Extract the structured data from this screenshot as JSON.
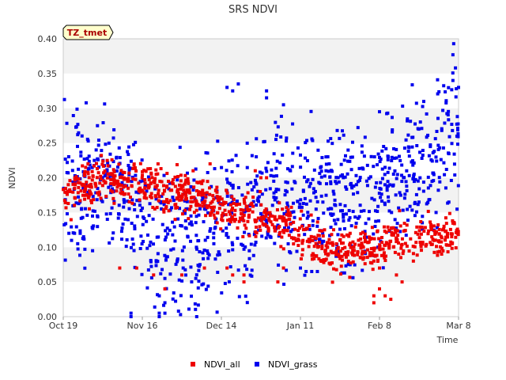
{
  "chart_data": {
    "type": "scatter",
    "title": "SRS NDVI",
    "xlabel": "Time",
    "ylabel": "NDVI",
    "tag": "TZ_tmet",
    "ylim": [
      0.0,
      0.4
    ],
    "yticks": [
      "0.00",
      "0.05",
      "0.10",
      "0.15",
      "0.20",
      "0.25",
      "0.30",
      "0.35",
      "0.40"
    ],
    "xlim": [
      0,
      140
    ],
    "xticks": [
      {
        "day": 0,
        "label": "Oct 19"
      },
      {
        "day": 28,
        "label": "Nov 16"
      },
      {
        "day": 56,
        "label": "Dec 14"
      },
      {
        "day": 84,
        "label": "Jan 11"
      },
      {
        "day": 112,
        "label": "Feb 8"
      },
      {
        "day": 140,
        "label": "Mar 8"
      }
    ],
    "grid": "horizontal bands",
    "legend_position": "bottom-center",
    "series": [
      {
        "name": "NDVI_all",
        "color": "#ee0000",
        "anchors": [
          [
            0,
            0.175
          ],
          [
            8,
            0.19
          ],
          [
            14,
            0.2
          ],
          [
            20,
            0.19
          ],
          [
            28,
            0.195
          ],
          [
            32,
            0.19
          ],
          [
            36,
            0.18
          ],
          [
            44,
            0.175
          ],
          [
            52,
            0.165
          ],
          [
            60,
            0.155
          ],
          [
            64,
            0.15
          ],
          [
            68,
            0.145
          ],
          [
            72,
            0.14
          ],
          [
            80,
            0.13
          ],
          [
            84,
            0.12
          ],
          [
            88,
            0.11
          ],
          [
            92,
            0.095
          ],
          [
            96,
            0.09
          ],
          [
            100,
            0.095
          ],
          [
            104,
            0.1
          ],
          [
            108,
            0.1
          ],
          [
            112,
            0.1
          ],
          [
            116,
            0.11
          ],
          [
            120,
            0.11
          ],
          [
            124,
            0.115
          ],
          [
            128,
            0.115
          ],
          [
            132,
            0.11
          ],
          [
            136,
            0.115
          ],
          [
            140,
            0.125
          ]
        ],
        "spread": 0.015,
        "n": 900,
        "outliers": [
          [
            20,
            0.07
          ],
          [
            26,
            0.07
          ],
          [
            32,
            0.06
          ],
          [
            36,
            0.04
          ],
          [
            42,
            0.06
          ],
          [
            50,
            0.07
          ],
          [
            58,
            0.07
          ],
          [
            60,
            0.06
          ],
          [
            64,
            0.05
          ],
          [
            64,
            0.06
          ],
          [
            76,
            0.05
          ],
          [
            78,
            0.07
          ],
          [
            110,
            0.02
          ],
          [
            110,
            0.03
          ],
          [
            112,
            0.04
          ],
          [
            114,
            0.03
          ],
          [
            116,
            0.025
          ],
          [
            118,
            0.06
          ],
          [
            120,
            0.05
          ],
          [
            110,
            0.08
          ],
          [
            112,
            0.07
          ],
          [
            70,
            0.2
          ],
          [
            68,
            0.21
          ],
          [
            72,
            0.2
          ],
          [
            134,
            0.09
          ],
          [
            124,
            0.08
          ],
          [
            52,
            0.22
          ],
          [
            46,
            0.21
          ]
        ]
      },
      {
        "name": "NDVI_grass",
        "color": "#0000ee",
        "anchors": [
          [
            0,
            0.195
          ],
          [
            6,
            0.2
          ],
          [
            12,
            0.2
          ],
          [
            16,
            0.21
          ],
          [
            20,
            0.17
          ],
          [
            24,
            0.16
          ],
          [
            28,
            0.15
          ],
          [
            32,
            0.13
          ],
          [
            36,
            0.12
          ],
          [
            40,
            0.115
          ],
          [
            44,
            0.11
          ],
          [
            48,
            0.115
          ],
          [
            52,
            0.12
          ],
          [
            56,
            0.13
          ],
          [
            60,
            0.135
          ],
          [
            64,
            0.14
          ],
          [
            68,
            0.155
          ],
          [
            72,
            0.165
          ],
          [
            76,
            0.17
          ],
          [
            80,
            0.175
          ],
          [
            84,
            0.18
          ],
          [
            88,
            0.185
          ],
          [
            92,
            0.175
          ],
          [
            96,
            0.17
          ],
          [
            100,
            0.165
          ],
          [
            104,
            0.165
          ],
          [
            108,
            0.17
          ],
          [
            112,
            0.19
          ],
          [
            116,
            0.2
          ],
          [
            120,
            0.205
          ],
          [
            124,
            0.21
          ],
          [
            128,
            0.23
          ],
          [
            132,
            0.24
          ],
          [
            136,
            0.26
          ],
          [
            140,
            0.28
          ]
        ],
        "spread": 0.05,
        "n": 1050,
        "outliers": [
          [
            24,
            0.0
          ],
          [
            24,
            0.005
          ],
          [
            34,
            0.0
          ],
          [
            34,
            0.005
          ],
          [
            36,
            0.005
          ],
          [
            36,
            0.02
          ],
          [
            34,
            0.03
          ],
          [
            36,
            0.055
          ],
          [
            60,
            0.325
          ],
          [
            62,
            0.335
          ],
          [
            58,
            0.33
          ],
          [
            72,
            0.325
          ],
          [
            72,
            0.315
          ],
          [
            78,
            0.305
          ],
          [
            112,
            0.295
          ],
          [
            138,
            0.377
          ],
          [
            138,
            0.34
          ],
          [
            140,
            0.33
          ],
          [
            86,
            0.065
          ],
          [
            88,
            0.065
          ],
          [
            90,
            0.065
          ],
          [
            84,
            0.07
          ],
          [
            2,
            0.12
          ],
          [
            4,
            0.12
          ],
          [
            6,
            0.12
          ]
        ]
      }
    ]
  }
}
